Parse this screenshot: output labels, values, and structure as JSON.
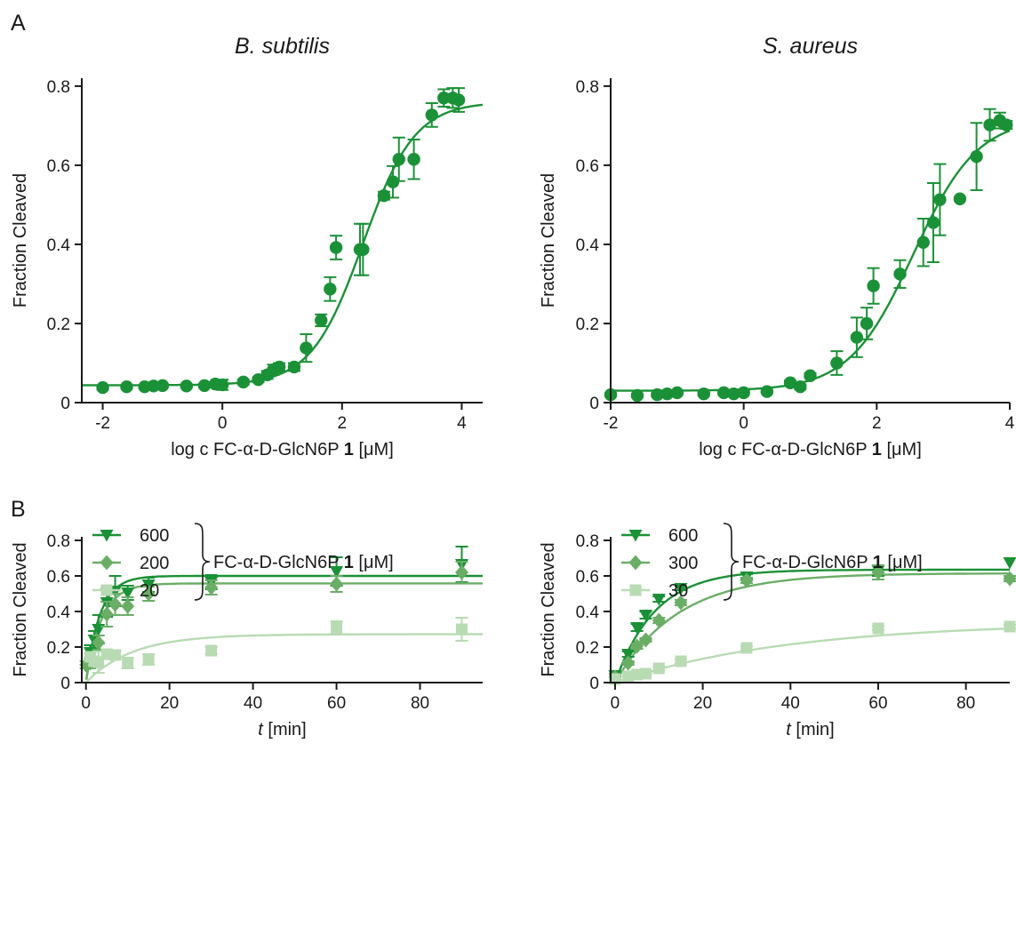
{
  "figure": {
    "panel_labels": [
      "A",
      "B"
    ]
  },
  "colors": {
    "dark": "#1b9137",
    "mid": "#6aae66",
    "light": "#b8dbb3",
    "axis": "#1a1a1a"
  },
  "chart_data": [
    {
      "id": "A-bsubtilis",
      "type": "scatter",
      "title": "B. subtilis",
      "xlabel_parts": [
        "log c FC-α-D-GlcN6P ",
        "1",
        " [μM]"
      ],
      "ylabel": "Fraction Cleaved",
      "xlim": [
        -2.35,
        4.35
      ],
      "ylim": [
        0,
        0.82
      ],
      "xticks": [
        -2,
        0,
        2,
        4
      ],
      "xtick_labels": [
        "-2",
        "0",
        "2",
        "4"
      ],
      "yticks": [
        0,
        0.2,
        0.4,
        0.6,
        0.8
      ],
      "ytick_labels": [
        "0",
        "0.2",
        "0.4",
        "0.6",
        "0.8"
      ],
      "grid": false,
      "series": [
        {
          "color": "dark",
          "marker": "circle",
          "x": [
            -2.0,
            -1.6,
            -1.3,
            -1.15,
            -1.0,
            -0.6,
            -0.3,
            -0.12,
            0.0,
            0.35,
            0.6,
            0.75,
            0.85,
            0.95,
            1.2,
            1.4,
            1.65,
            1.8,
            1.9,
            2.3,
            2.35,
            2.7,
            2.85,
            2.95,
            3.2,
            3.5,
            3.7,
            3.85,
            3.95
          ],
          "y": [
            0.038,
            0.04,
            0.04,
            0.042,
            0.043,
            0.042,
            0.043,
            0.047,
            0.045,
            0.052,
            0.058,
            0.07,
            0.083,
            0.09,
            0.09,
            0.138,
            0.208,
            0.287,
            0.392,
            0.387,
            0.387,
            0.523,
            0.558,
            0.615,
            0.615,
            0.727,
            0.77,
            0.77,
            0.765
          ],
          "err": [
            0.004,
            0.004,
            0.004,
            0.004,
            0.004,
            0.004,
            0.004,
            0.004,
            0.013,
            0.006,
            0.006,
            0.01,
            0.013,
            0.01,
            0.01,
            0.035,
            0.015,
            0.03,
            0.03,
            0.065,
            0.065,
            0.01,
            0.04,
            0.055,
            0.05,
            0.03,
            0.022,
            0.025,
            0.03
          ]
        }
      ],
      "fits": [
        {
          "color": "dark",
          "model": "sigmoid",
          "bottom": 0.044,
          "top": 0.76,
          "logEC50": 2.35,
          "hill": 1.0
        }
      ]
    },
    {
      "id": "A-saureus",
      "type": "scatter",
      "title": "S. aureus",
      "xlabel_parts": [
        "log c FC-α-D-GlcN6P ",
        "1",
        " [μM]"
      ],
      "ylabel": "Fraction Cleaved",
      "xlim": [
        -2.0,
        4.0
      ],
      "ylim": [
        0,
        0.82
      ],
      "xticks": [
        -2,
        0,
        2,
        4
      ],
      "xtick_labels": [
        "-2",
        "0",
        "2",
        "4"
      ],
      "yticks": [
        0,
        0.2,
        0.4,
        0.6,
        0.8
      ],
      "ytick_labels": [
        "0",
        "0.2",
        "0.4",
        "0.6",
        "0.8"
      ],
      "grid": false,
      "series": [
        {
          "color": "dark",
          "marker": "circle",
          "x": [
            -2.0,
            -1.6,
            -1.3,
            -1.15,
            -1.0,
            -0.6,
            -0.3,
            -0.15,
            0.0,
            0.35,
            0.7,
            0.85,
            1.0,
            1.4,
            1.7,
            1.85,
            1.95,
            2.35,
            2.7,
            2.85,
            2.95,
            3.25,
            3.5,
            3.7,
            3.85,
            3.95
          ],
          "y": [
            0.02,
            0.018,
            0.02,
            0.022,
            0.025,
            0.022,
            0.025,
            0.022,
            0.025,
            0.028,
            0.05,
            0.04,
            0.068,
            0.1,
            0.165,
            0.2,
            0.295,
            0.325,
            0.405,
            0.455,
            0.513,
            0.515,
            0.622,
            0.702,
            0.713,
            0.702
          ],
          "err": [
            0.004,
            0.004,
            0.004,
            0.004,
            0.004,
            0.004,
            0.004,
            0.004,
            0.004,
            0.004,
            0.006,
            0.006,
            0.006,
            0.03,
            0.05,
            0.04,
            0.045,
            0.035,
            0.06,
            0.1,
            0.09,
            0.0,
            0.085,
            0.04,
            0.02,
            0.01
          ]
        }
      ],
      "fits": [
        {
          "color": "dark",
          "model": "sigmoid",
          "bottom": 0.03,
          "top": 0.72,
          "logEC50": 2.55,
          "hill": 0.9
        }
      ]
    },
    {
      "id": "B-bsubtilis",
      "type": "scatter",
      "xlabel_italic": "t",
      "xlabel_rest": " [min]",
      "ylabel": "Fraction Cleaved",
      "xlim": [
        -1.0,
        95.0
      ],
      "ylim": [
        0,
        0.82
      ],
      "xticks": [
        0,
        20,
        40,
        60,
        80
      ],
      "xtick_labels": [
        "0",
        "20",
        "40",
        "60",
        "80"
      ],
      "yticks": [
        0,
        0.2,
        0.4,
        0.6,
        0.8
      ],
      "ytick_labels": [
        "0",
        "0.2",
        "0.4",
        "0.6",
        "0.8"
      ],
      "grid": false,
      "legend": {
        "placement": "top-left",
        "entries": [
          "600",
          "200",
          "20"
        ],
        "bracket_parts": [
          "FC-α-D-GlcN6P ",
          "1",
          " [μM]"
        ]
      },
      "series": [
        {
          "name": "600",
          "color": "dark",
          "marker": "triangle-down",
          "x": [
            1,
            2,
            3,
            5,
            7,
            10,
            15,
            30,
            60,
            90
          ],
          "y": [
            0.17,
            0.24,
            0.3,
            0.45,
            0.515,
            0.505,
            0.55,
            0.565,
            0.625,
            0.665
          ],
          "err": [
            0.04,
            0.05,
            0.08,
            0.08,
            0.085,
            0.04,
            0.04,
            0.04,
            0.08,
            0.1
          ]
        },
        {
          "name": "200",
          "color": "mid",
          "marker": "diamond",
          "x": [
            0,
            1,
            3,
            5,
            7,
            10,
            15,
            30,
            60,
            90
          ],
          "y": [
            0.1,
            0.11,
            0.225,
            0.385,
            0.44,
            0.43,
            0.5,
            0.535,
            0.555,
            0.62
          ],
          "err": [
            0.02,
            0.03,
            0.04,
            0.07,
            0.06,
            0.05,
            0.04,
            0.04,
            0.045,
            0.06
          ]
        },
        {
          "name": "20",
          "color": "light",
          "marker": "square",
          "x": [
            1,
            2,
            3,
            5,
            7,
            10,
            15,
            30,
            60,
            90
          ],
          "y": [
            0.145,
            0.12,
            0.115,
            0.16,
            0.155,
            0.11,
            0.13,
            0.18,
            0.31,
            0.3
          ],
          "err": [
            0.02,
            0.02,
            0.06,
            0.02,
            0.025,
            0.03,
            0.03,
            0.02,
            0.035,
            0.065
          ]
        }
      ],
      "fits": [
        {
          "color": "dark",
          "model": "exp",
          "plateau": 0.6,
          "k": 0.3
        },
        {
          "color": "mid",
          "model": "exp",
          "plateau": 0.558,
          "k": 0.27
        },
        {
          "color": "light",
          "model": "exp",
          "plateau": 0.272,
          "k": 0.09
        }
      ]
    },
    {
      "id": "B-saureus",
      "type": "scatter",
      "xlabel_italic": "t",
      "xlabel_rest": " [min]",
      "ylabel": "Fraction Cleaved",
      "xlim": [
        -1.0,
        90.0
      ],
      "ylim": [
        0,
        0.82
      ],
      "xticks": [
        0,
        20,
        40,
        60,
        80
      ],
      "xtick_labels": [
        "0",
        "20",
        "40",
        "60",
        "80"
      ],
      "yticks": [
        0,
        0.2,
        0.4,
        0.6,
        0.8
      ],
      "ytick_labels": [
        "0",
        "0.2",
        "0.4",
        "0.6",
        "0.8"
      ],
      "grid": false,
      "legend": {
        "placement": "top-left",
        "entries": [
          "600",
          "300",
          "30"
        ],
        "bracket_parts": [
          "FC-α-D-GlcN6P ",
          "1",
          " [μM]"
        ]
      },
      "series": [
        {
          "name": "600",
          "color": "dark",
          "marker": "triangle-down",
          "x": [
            0,
            3,
            5,
            7,
            10,
            15,
            30,
            60,
            90
          ],
          "y": [
            0.04,
            0.16,
            0.31,
            0.38,
            0.47,
            0.53,
            0.595,
            0.63,
            0.675
          ],
          "err": [
            0.01,
            0.015,
            0.02,
            0.02,
            0.015,
            0.01,
            0.015,
            0.03,
            0.0
          ]
        },
        {
          "name": "300",
          "color": "mid",
          "marker": "diamond",
          "x": [
            0,
            3,
            5,
            7,
            10,
            15,
            30,
            60,
            90
          ],
          "y": [
            0.03,
            0.11,
            0.205,
            0.24,
            0.35,
            0.45,
            0.575,
            0.62,
            0.585
          ],
          "err": [
            0.01,
            0.01,
            0.015,
            0.01,
            0.015,
            0.015,
            0.015,
            0.04,
            0.015
          ]
        },
        {
          "name": "30",
          "color": "light",
          "marker": "square",
          "x": [
            0,
            3,
            5,
            7,
            10,
            15,
            30,
            60,
            90
          ],
          "y": [
            0.02,
            0.035,
            0.045,
            0.05,
            0.08,
            0.12,
            0.195,
            0.305,
            0.315
          ],
          "err": [
            0.005,
            0.005,
            0.005,
            0.005,
            0.01,
            0.01,
            0.01,
            0.01,
            0.01
          ]
        }
      ],
      "fits": [
        {
          "color": "dark",
          "model": "exp",
          "plateau": 0.635,
          "k": 0.11
        },
        {
          "color": "mid",
          "model": "exp",
          "plateau": 0.615,
          "k": 0.07
        },
        {
          "color": "light",
          "model": "exp",
          "plateau": 0.34,
          "k": 0.025
        }
      ]
    }
  ]
}
